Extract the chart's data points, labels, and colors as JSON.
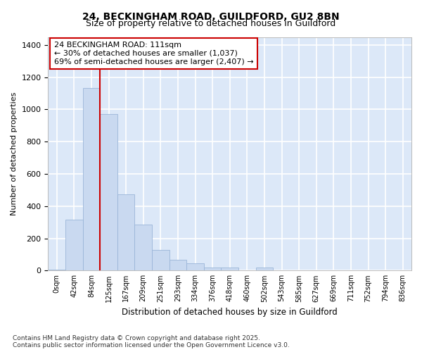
{
  "title_line1": "24, BECKINGHAM ROAD, GUILDFORD, GU2 8BN",
  "title_line2": "Size of property relative to detached houses in Guildford",
  "xlabel": "Distribution of detached houses by size in Guildford",
  "ylabel": "Number of detached properties",
  "categories": [
    "0sqm",
    "42sqm",
    "84sqm",
    "125sqm",
    "167sqm",
    "209sqm",
    "251sqm",
    "293sqm",
    "334sqm",
    "376sqm",
    "418sqm",
    "460sqm",
    "502sqm",
    "543sqm",
    "585sqm",
    "627sqm",
    "669sqm",
    "711sqm",
    "752sqm",
    "794sqm",
    "836sqm"
  ],
  "values": [
    5,
    315,
    1135,
    970,
    475,
    285,
    130,
    65,
    45,
    20,
    20,
    0,
    20,
    0,
    0,
    0,
    0,
    0,
    0,
    0,
    0
  ],
  "bar_color": "#c9d9f0",
  "bar_edge_color": "#9ab5d8",
  "plot_bg_color": "#dce8f8",
  "fig_bg_color": "#ffffff",
  "grid_color": "#ffffff",
  "vline_color": "#cc0000",
  "vline_x": 3.0,
  "annotation_text": "24 BECKINGHAM ROAD: 111sqm\n← 30% of detached houses are smaller (1,037)\n69% of semi-detached houses are larger (2,407) →",
  "annotation_box_edgecolor": "#cc0000",
  "annotation_fill": "#ffffff",
  "ylim": [
    0,
    1450
  ],
  "yticks": [
    0,
    200,
    400,
    600,
    800,
    1000,
    1200,
    1400
  ],
  "footer_line1": "Contains HM Land Registry data © Crown copyright and database right 2025.",
  "footer_line2": "Contains public sector information licensed under the Open Government Licence v3.0."
}
